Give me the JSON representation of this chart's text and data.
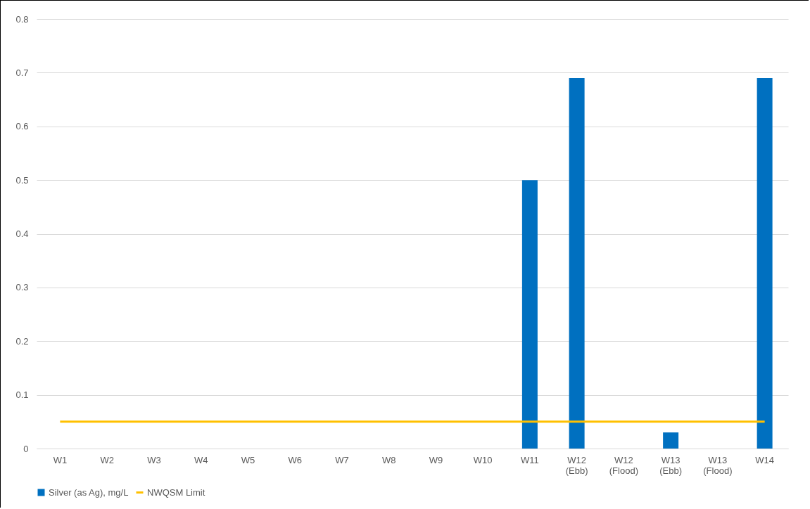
{
  "chart_data": {
    "type": "bar",
    "categories": [
      "W1",
      "W2",
      "W3",
      "W4",
      "W5",
      "W6",
      "W7",
      "W8",
      "W9",
      "W10",
      "W11",
      "W12 (Ebb)",
      "W12 (Flood)",
      "W13 (Ebb)",
      "W13 (Flood)",
      "W14"
    ],
    "series": [
      {
        "name": "Silver (as Ag), mg/L",
        "color": "#0070c0",
        "values": [
          null,
          null,
          null,
          null,
          null,
          null,
          null,
          null,
          null,
          null,
          0.5,
          0.69,
          null,
          0.03,
          null,
          0.69
        ]
      },
      {
        "name": "NWQSM Limit",
        "type": "line",
        "color": "#ffc000",
        "values": [
          0.05,
          0.05,
          0.05,
          0.05,
          0.05,
          0.05,
          0.05,
          0.05,
          0.05,
          0.05,
          0.05,
          0.05,
          0.05,
          0.05,
          0.05,
          0.05
        ]
      }
    ],
    "ylim": [
      0,
      0.8
    ],
    "yticks": [
      0,
      0.1,
      0.2,
      0.3,
      0.4,
      0.5,
      0.6,
      0.7,
      0.8
    ],
    "grid": "y",
    "legend": "bottom"
  }
}
